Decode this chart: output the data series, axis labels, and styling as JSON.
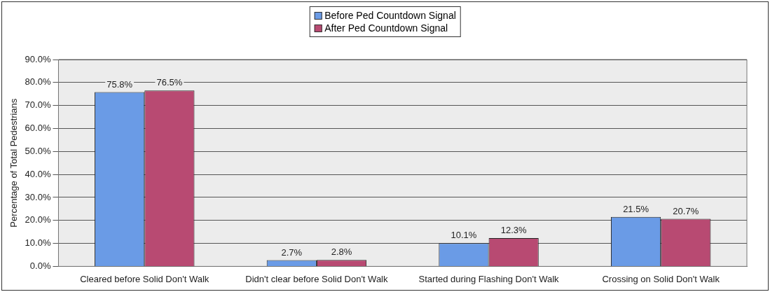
{
  "chart_data": {
    "type": "bar",
    "ylabel": "Percentage of Total Pedestrians",
    "categories": [
      "Cleared before Solid Don't Walk",
      "Didn't clear before Solid Don't Walk",
      "Started during Flashing Don't Walk",
      "Crossing on Solid Don't Walk"
    ],
    "series": [
      {
        "name": "Before Ped Countdown Signal",
        "color": "#6a9be6",
        "values": [
          75.8,
          2.7,
          10.1,
          21.5
        ],
        "value_labels": [
          "75.8%",
          "2.7%",
          "10.1%",
          "21.5%"
        ]
      },
      {
        "name": "After Ped Countdown Signal",
        "color": "#b84a72",
        "values": [
          76.5,
          2.8,
          12.3,
          20.7
        ],
        "value_labels": [
          "76.5%",
          "2.8%",
          "12.3%",
          "20.7%"
        ]
      }
    ],
    "ylim": [
      0,
      90
    ],
    "yticks": [
      {
        "value": 0,
        "label": "0.0%"
      },
      {
        "value": 10,
        "label": "10.0%"
      },
      {
        "value": 20,
        "label": "20.0%"
      },
      {
        "value": 30,
        "label": "30.0%"
      },
      {
        "value": 40,
        "label": "40.0%"
      },
      {
        "value": 50,
        "label": "50.0%"
      },
      {
        "value": 60,
        "label": "60.0%"
      },
      {
        "value": 70,
        "label": "70.0%"
      },
      {
        "value": 80,
        "label": "80.0%"
      },
      {
        "value": 90,
        "label": "90.0%"
      }
    ],
    "grid": "y",
    "legend": "top"
  }
}
